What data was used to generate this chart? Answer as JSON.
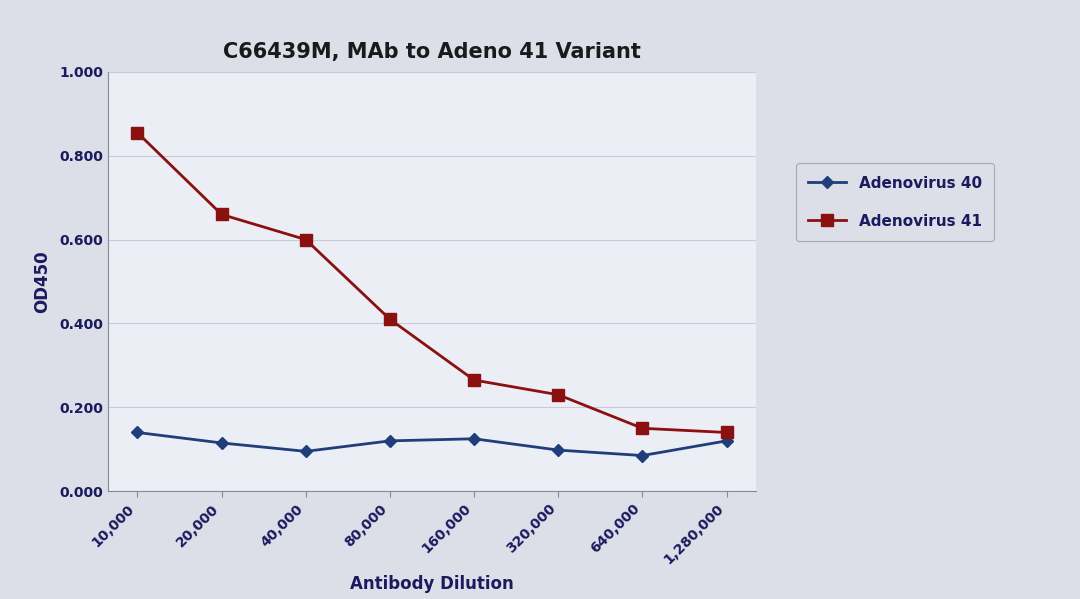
{
  "title": "C66439M, MAb to Adeno 41 Variant",
  "xlabel": "Antibody Dilution",
  "ylabel": "OD450",
  "x_labels": [
    "10,000",
    "20,000",
    "40,000",
    "80,000",
    "160,000",
    "320,000",
    "640,000",
    "1,280,000"
  ],
  "adeno40_values": [
    0.14,
    0.115,
    0.095,
    0.12,
    0.125,
    0.098,
    0.085,
    0.12
  ],
  "adeno41_values": [
    0.855,
    0.66,
    0.6,
    0.41,
    0.265,
    0.23,
    0.15,
    0.14
  ],
  "adeno40_color": "#1F3E7A",
  "adeno41_color": "#8B1010",
  "fig_bg_color": "#DCDEE8",
  "plot_bg_color": "#ECEEF5",
  "grid_color": "#C8CAD8",
  "ylim": [
    0.0,
    1.0
  ],
  "yticks": [
    0.0,
    0.2,
    0.4,
    0.6,
    0.8,
    1.0
  ],
  "legend_labels": [
    "Adenovirus 40",
    "Adenovirus 41"
  ],
  "title_fontsize": 15,
  "axis_label_fontsize": 12,
  "tick_fontsize": 10,
  "legend_fontsize": 11
}
